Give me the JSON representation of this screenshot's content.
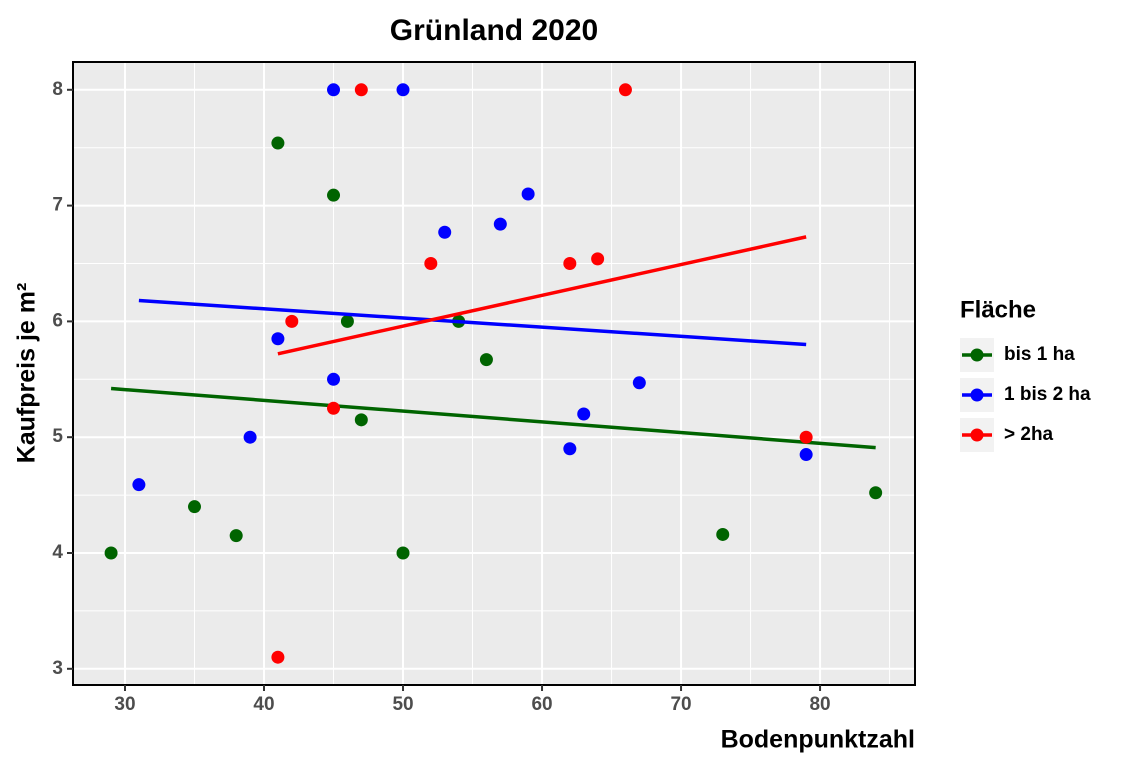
{
  "chart_data": {
    "type": "scatter",
    "title": "Grünland 2020",
    "xlabel": "Bodenpunktzahl",
    "ylabel": "Kaufpreis je m²",
    "legend_title": "Fläche",
    "legend": "right",
    "grid": true,
    "xlim": [
      26.26,
      86.83
    ],
    "ylim": [
      2.86,
      8.24
    ],
    "xticks": [
      30,
      40,
      50,
      60,
      70,
      80
    ],
    "yticks": [
      3,
      4,
      5,
      6,
      7,
      8
    ],
    "xminor": [
      35,
      45,
      55,
      65,
      75,
      85
    ],
    "yminor": [
      3.5,
      4.5,
      5.5,
      6.5,
      7.5
    ],
    "series": [
      {
        "name": "bis 1 ha",
        "color": "#006400",
        "x": [
          29,
          35,
          38,
          41,
          45,
          46,
          47,
          50,
          54,
          56,
          73,
          84
        ],
        "values": [
          4.0,
          4.4,
          4.15,
          7.54,
          7.09,
          6.0,
          5.15,
          4.0,
          6.0,
          5.67,
          4.16,
          4.52
        ],
        "fit_x": [
          29,
          84
        ],
        "fit_values": [
          5.42,
          4.91
        ]
      },
      {
        "name": "1 bis 2 ha",
        "color": "#0000ff",
        "x": [
          31,
          39,
          41,
          45,
          45,
          50,
          53,
          57,
          59,
          62,
          63,
          67,
          79
        ],
        "values": [
          4.59,
          5.0,
          5.85,
          8.0,
          5.5,
          8.0,
          6.77,
          6.84,
          7.1,
          4.9,
          5.2,
          5.47,
          4.85
        ],
        "fit_x": [
          31,
          79
        ],
        "fit_values": [
          6.18,
          5.8
        ]
      },
      {
        "name": "> 2ha",
        "color": "#ff0000",
        "x": [
          41,
          42,
          45,
          47,
          52,
          62,
          64,
          66,
          79
        ],
        "values": [
          3.1,
          6.0,
          5.25,
          8.0,
          6.5,
          6.5,
          6.54,
          8.0,
          5.0
        ],
        "fit_x": [
          41,
          79
        ],
        "fit_values": [
          5.72,
          6.73
        ]
      }
    ]
  }
}
